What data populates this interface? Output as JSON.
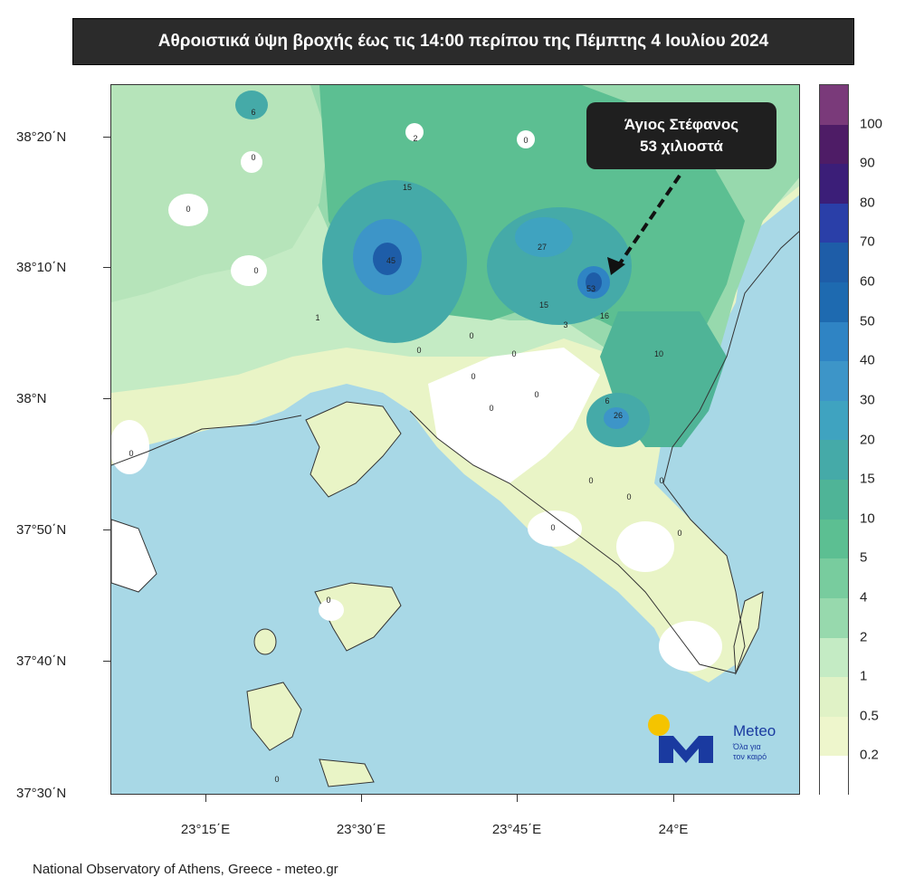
{
  "title": "Αθροιστικά ύψη βροχής έως τις 14:00 περίπου της Πέμπτης 4 Ιουλίου 2024",
  "callout": {
    "line1": "Άγιος Στέφανος",
    "line2": "53 χιλιοστά"
  },
  "lat_labels": [
    "38°20΄N",
    "38°10΄N",
    "38°N",
    "37°50΄N",
    "37°40΄N",
    "37°30΄N"
  ],
  "lon_labels": [
    "23°15΄E",
    "23°30΄E",
    "23°45΄E",
    "24°E"
  ],
  "legend": {
    "labels": [
      "100",
      "90",
      "80",
      "70",
      "60",
      "50",
      "40",
      "30",
      "20",
      "15",
      "10",
      "5",
      "4",
      "2",
      "1",
      "0.5",
      "0.2"
    ],
    "colors": [
      "#7a3a7a",
      "#4e1c66",
      "#3b1e78",
      "#2a3fa8",
      "#1e5da8",
      "#1e6ab0",
      "#2f84c4",
      "#3d95c8",
      "#3fa3c0",
      "#45aaa8",
      "#4fb497",
      "#5cbf92",
      "#78cc9e",
      "#97d9ad",
      "#c4ebc4",
      "#e0f2c6",
      "#eef6cc",
      "#ffffff"
    ]
  },
  "station_values": {
    "max_center": "53",
    "center_45": "45",
    "center_27": "27",
    "center_26": "26",
    "v15a": "15",
    "v15b": "15",
    "v16": "16",
    "v10": "10",
    "v6a": "6",
    "v6b": "6",
    "v2": "2",
    "v1": "1",
    "v3": "3",
    "zero": "0"
  },
  "logo": {
    "name": "Meteo",
    "tagline1": "Όλα για",
    "tagline2": "τον καιρό"
  },
  "credit": "National Observatory of Athens, Greece - meteo.gr"
}
